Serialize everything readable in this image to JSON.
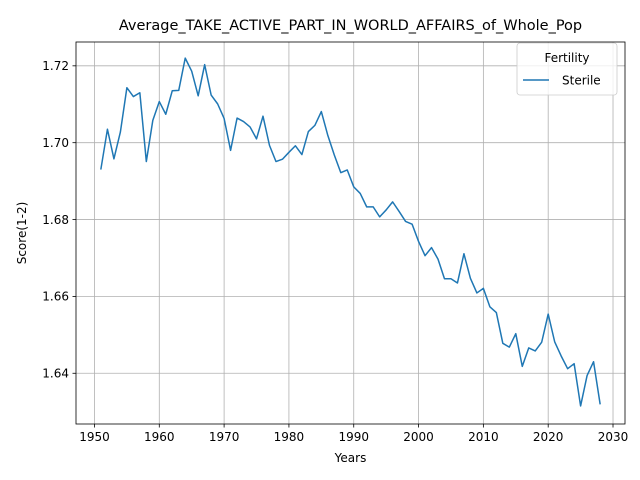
{
  "chart_data": {
    "type": "line",
    "title": "Average_TAKE_ACTIVE_PART_IN_WORLD_AFFAIRS_of_Whole_Pop",
    "xlabel": "Years",
    "ylabel": "Score(1-2)",
    "xlim": [
      1947.15,
      2031.85
    ],
    "ylim": [
      1.6268,
      1.7262
    ],
    "xticks": [
      1950,
      1960,
      1970,
      1980,
      1990,
      2000,
      2010,
      2020,
      2030
    ],
    "yticks": [
      1.64,
      1.66,
      1.68,
      1.7,
      1.72
    ],
    "ytick_labels": [
      "1.64",
      "1.66",
      "1.68",
      "1.70",
      "1.72"
    ],
    "grid": true,
    "legend": {
      "title": "Fertility",
      "placement": "top-right"
    },
    "colors": {
      "series": "#1f77b4",
      "grid": "#b0b0b0"
    },
    "series": [
      {
        "name": "Sterile",
        "x": [
          1951,
          1952,
          1953,
          1954,
          1955,
          1956,
          1957,
          1958,
          1959,
          1960,
          1961,
          1962,
          1963,
          1964,
          1965,
          1966,
          1967,
          1968,
          1969,
          1970,
          1971,
          1972,
          1973,
          1974,
          1975,
          1976,
          1977,
          1978,
          1979,
          1980,
          1981,
          1982,
          1983,
          1984,
          1985,
          1986,
          1987,
          1988,
          1989,
          1990,
          1991,
          1992,
          1993,
          1994,
          1995,
          1996,
          1997,
          1998,
          1999,
          2000,
          2001,
          2002,
          2003,
          2004,
          2005,
          2006,
          2007,
          2008,
          2009,
          2010,
          2011,
          2012,
          2013,
          2014,
          2015,
          2016,
          2017,
          2018,
          2019,
          2020,
          2021,
          2022,
          2023,
          2024,
          2025,
          2026,
          2027,
          2028
        ],
        "values": [
          1.6932,
          1.7035,
          1.6958,
          1.7028,
          1.7143,
          1.712,
          1.713,
          1.6951,
          1.7058,
          1.7107,
          1.7074,
          1.7135,
          1.7136,
          1.722,
          1.7186,
          1.7122,
          1.7203,
          1.7124,
          1.7101,
          1.7063,
          1.698,
          1.7064,
          1.7055,
          1.7041,
          1.701,
          1.7069,
          1.6993,
          1.6951,
          1.6957,
          1.6975,
          1.6992,
          1.6969,
          1.7029,
          1.7045,
          1.7081,
          1.7019,
          1.6968,
          1.6922,
          1.6929,
          1.6885,
          1.6868,
          1.6833,
          1.6833,
          1.6807,
          1.6825,
          1.6846,
          1.6821,
          1.6795,
          1.6788,
          1.6743,
          1.6706,
          1.6727,
          1.6697,
          1.6646,
          1.6646,
          1.6635,
          1.6711,
          1.6647,
          1.6609,
          1.6621,
          1.6573,
          1.6558,
          1.6478,
          1.6468,
          1.6503,
          1.6418,
          1.6466,
          1.6458,
          1.6481,
          1.6554,
          1.6482,
          1.6445,
          1.6412,
          1.6425,
          1.6315,
          1.6394,
          1.643,
          1.6321
        ]
      }
    ]
  }
}
